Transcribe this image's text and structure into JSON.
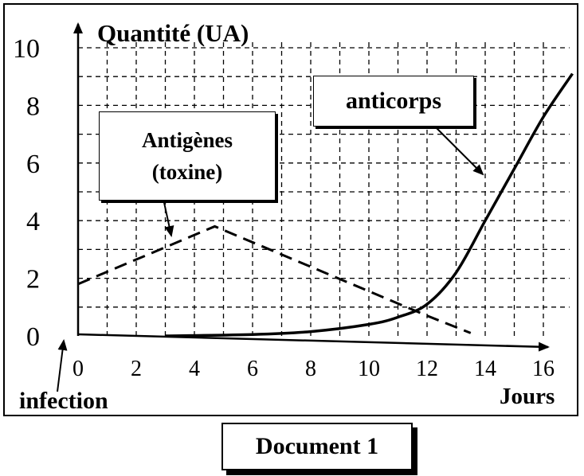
{
  "chart_data": {
    "type": "line",
    "ylabel": "Quantité (UA)",
    "xlabel": "Jours",
    "x_ticks": [
      "0",
      "2",
      "4",
      "6",
      "8",
      "10",
      "12",
      "14",
      "16"
    ],
    "y_ticks": [
      "0",
      "2",
      "4",
      "6",
      "8",
      "10"
    ],
    "xlim": [
      0,
      16
    ],
    "ylim": [
      0,
      10
    ],
    "grid": true,
    "x_annotation": "infection",
    "series": [
      {
        "name": "Antigènes (toxine)",
        "style": "dashed",
        "x": [
          0,
          4.7,
          8,
          12,
          13.5
        ],
        "y": [
          1.8,
          3.8,
          2.4,
          0.7,
          0.1
        ]
      },
      {
        "name": "anticorps",
        "style": "solid",
        "x": [
          3,
          6,
          8,
          10,
          11,
          12,
          13,
          14,
          15,
          16,
          17
        ],
        "y": [
          0,
          0.05,
          0.15,
          0.4,
          0.65,
          1.1,
          2.2,
          4.0,
          5.8,
          7.6,
          9.1
        ]
      }
    ],
    "labels": {
      "antigen_line1": "Antigènes",
      "antigen_line2": "(toxine)",
      "anticorps": "anticorps"
    }
  },
  "document_label": "Document 1",
  "colors": {
    "ink": "#000000",
    "background": "#ffffff"
  }
}
